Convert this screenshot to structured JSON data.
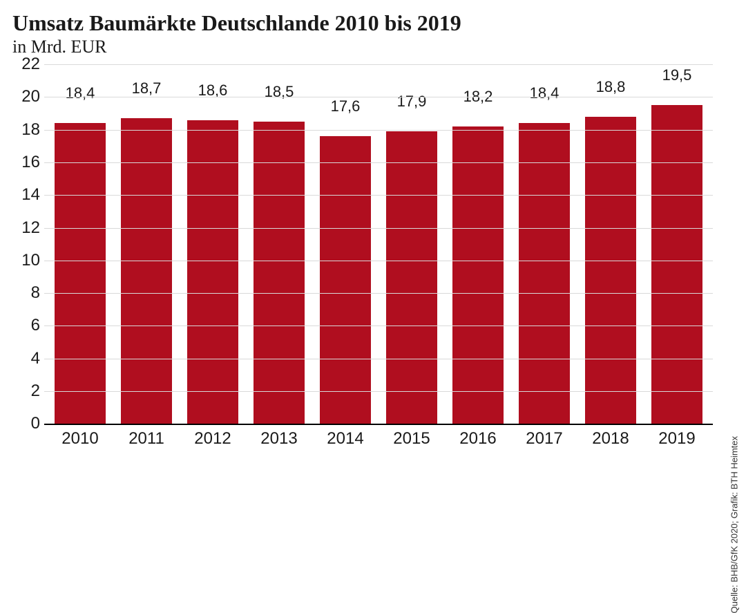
{
  "chart": {
    "type": "bar",
    "title": "Umsatz Baumärkte Deutschlande 2010 bis 2019",
    "subtitle": "in Mrd. EUR",
    "title_fontsize": 32,
    "subtitle_fontsize": 26,
    "categories": [
      "2010",
      "2011",
      "2012",
      "2013",
      "2014",
      "2015",
      "2016",
      "2017",
      "2018",
      "2019"
    ],
    "values": [
      18.4,
      18.7,
      18.6,
      18.5,
      17.6,
      17.9,
      18.2,
      18.4,
      18.8,
      19.5
    ],
    "value_labels": [
      "18,4",
      "18,7",
      "18,6",
      "18,5",
      "17,6",
      "17,9",
      "18,2",
      "18,4",
      "18,8",
      "19,5"
    ],
    "bar_color": "#b00e1f",
    "background_color": "#ffffff",
    "grid_color": "#d9d9d9",
    "axis_color": "#000000",
    "text_color": "#1a1a1a",
    "ylim": [
      0,
      22
    ],
    "ytick_step": 2,
    "yticks": [
      0,
      2,
      4,
      6,
      8,
      10,
      12,
      14,
      16,
      18,
      20,
      22
    ],
    "bar_width_ratio": 0.78,
    "value_label_fontsize": 22,
    "tick_label_fontsize": 24,
    "source_fontsize": 13,
    "source": "Quelle: BHB/GfK 2020; Grafik: BTH Heimtex"
  }
}
